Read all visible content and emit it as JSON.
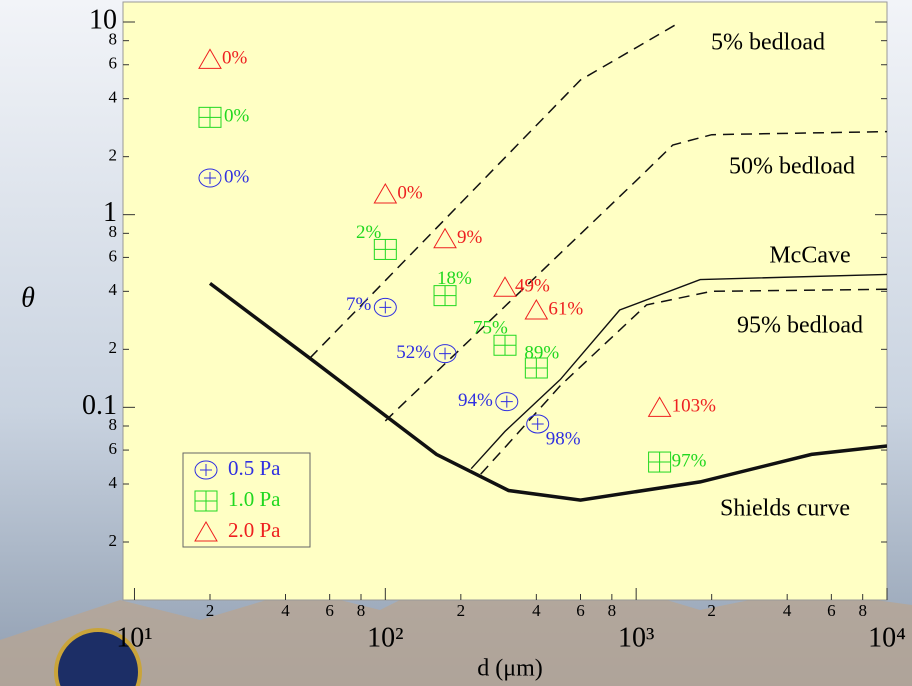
{
  "chart_data": {
    "type": "scatter",
    "x_label": "d (μm)",
    "y_label": "θ",
    "xscale": "log",
    "yscale": "log",
    "xlim": [
      9,
      10000
    ],
    "ylim": [
      0.01,
      12.7
    ],
    "xticks": [
      {
        "value": 10,
        "label": "10¹"
      },
      {
        "value": 20,
        "label": "2"
      },
      {
        "value": 40,
        "label": "4"
      },
      {
        "value": 60,
        "label": "6"
      },
      {
        "value": 80,
        "label": "8"
      },
      {
        "value": 100,
        "label": "10²"
      },
      {
        "value": 200,
        "label": "2"
      },
      {
        "value": 400,
        "label": "4"
      },
      {
        "value": 600,
        "label": "6"
      },
      {
        "value": 800,
        "label": "8"
      },
      {
        "value": 1000,
        "label": "10³"
      },
      {
        "value": 2000,
        "label": "2"
      },
      {
        "value": 4000,
        "label": "4"
      },
      {
        "value": 6000,
        "label": "6"
      },
      {
        "value": 8000,
        "label": "8"
      },
      {
        "value": 10000,
        "label": "10⁴"
      }
    ],
    "yticks": [
      {
        "value": 0.02,
        "label": "2"
      },
      {
        "value": 0.04,
        "label": "4"
      },
      {
        "value": 0.06,
        "label": "6"
      },
      {
        "value": 0.08,
        "label": "8"
      },
      0.1,
      {
        "value": 0.2,
        "label": "2"
      },
      {
        "value": 0.4,
        "label": "4"
      },
      {
        "value": 0.6,
        "label": "6"
      },
      {
        "value": 0.8,
        "label": "8"
      },
      1,
      {
        "value": 2,
        "label": "2"
      },
      {
        "value": 4,
        "label": "4"
      },
      {
        "value": 6,
        "label": "6"
      },
      {
        "value": 8,
        "label": "8"
      },
      10
    ],
    "legend": "lower left",
    "series": [
      {
        "name": "0.5 Pa",
        "color": "#3030e0",
        "marker": "circle-plus",
        "x": [
          20,
          100,
          173,
          305,
          405
        ],
        "y": [
          1.55,
          0.33,
          0.19,
          0.107,
          0.082
        ],
        "point_labels": [
          "0%",
          "7%",
          "52%",
          "94%",
          "98%"
        ]
      },
      {
        "name": "1.0 Pa",
        "color": "#20d820",
        "marker": "square-plus",
        "x": [
          20,
          100,
          173,
          300,
          400,
          1240
        ],
        "y": [
          3.2,
          0.66,
          0.38,
          0.21,
          0.16,
          0.052
        ],
        "point_labels": [
          "0%",
          "2%",
          "18%",
          "75%",
          "89%",
          "97%"
        ]
      },
      {
        "name": "2.0 Pa",
        "color": "#ee2020",
        "marker": "triangle",
        "x": [
          20,
          100,
          173,
          300,
          400,
          1240
        ],
        "y": [
          6.4,
          1.28,
          0.75,
          0.42,
          0.32,
          0.1
        ],
        "point_labels": [
          "0%",
          "0%",
          "9%",
          "49%",
          "61%",
          "103%"
        ]
      }
    ],
    "lines": [
      {
        "name": "5% bedload",
        "style": "dashed",
        "width": 1.5,
        "x": [
          50,
          600,
          1500
        ],
        "y": [
          0.18,
          5,
          10
        ]
      },
      {
        "name": "50% bedload",
        "style": "dashed",
        "width": 1.5,
        "x": [
          100,
          1000,
          1400,
          2000,
          10000
        ],
        "y": [
          0.085,
          1.5,
          2.3,
          2.6,
          2.7
        ]
      },
      {
        "name": "McCave",
        "style": "solid",
        "width": 1.4,
        "x": [
          220,
          300,
          500,
          860,
          1800,
          10000
        ],
        "y": [
          0.048,
          0.075,
          0.14,
          0.32,
          0.46,
          0.49
        ]
      },
      {
        "name": "95% bedload",
        "style": "dashed",
        "width": 1.5,
        "x": [
          240,
          310,
          500,
          1100,
          2000,
          10000
        ],
        "y": [
          0.045,
          0.065,
          0.13,
          0.34,
          0.4,
          0.41
        ]
      },
      {
        "name": "Shields curve",
        "style": "solid",
        "width": 3.5,
        "x": [
          20,
          50,
          160,
          310,
          600,
          1800,
          5000,
          10000
        ],
        "y": [
          0.44,
          0.18,
          0.057,
          0.037,
          0.033,
          0.041,
          0.057,
          0.063
        ]
      }
    ]
  }
}
